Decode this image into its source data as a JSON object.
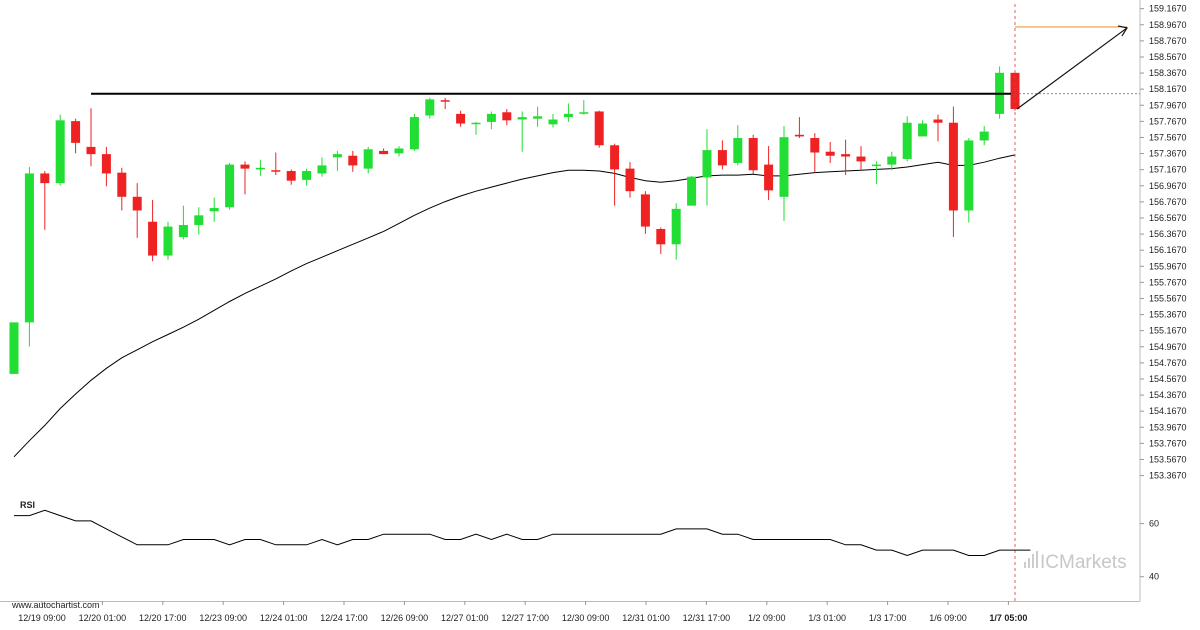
{
  "watermark": "www.autochartist.com",
  "broker_logo": "ICMarkets",
  "colors": {
    "up": "#22dd33",
    "down": "#ee2222",
    "resistance": "#000000",
    "target": "#ee9944",
    "ma": "#000000",
    "rsi": "#000000"
  },
  "chart_data": [
    {
      "type": "candlestick",
      "y_ticks": [
        "159.1670",
        "158.9670",
        "158.7670",
        "158.5670",
        "158.3670",
        "158.1670",
        "157.9670",
        "157.7670",
        "157.5670",
        "157.3670",
        "157.1670",
        "156.9670",
        "156.7670",
        "156.5670",
        "156.3670",
        "156.1670",
        "155.9670",
        "155.7670",
        "155.5670",
        "155.3670",
        "155.1670",
        "154.9670",
        "154.7670",
        "154.5670",
        "154.3670",
        "154.1670",
        "153.9670",
        "153.7670",
        "153.5670",
        "153.3670"
      ],
      "ylim": [
        153.25,
        159.2
      ],
      "x_tick_labels": [
        "12/19 09:00",
        "12/20 01:00",
        "12/20 17:00",
        "12/23 09:00",
        "12/24 01:00",
        "12/24 17:00",
        "12/26 09:00",
        "12/27 01:00",
        "12/27 17:00",
        "12/30 09:00",
        "12/31 01:00",
        "12/31 17:00",
        "1/2 09:00",
        "1/3 01:00",
        "1/3 17:00",
        "1/6 09:00",
        "1/7 05:00"
      ],
      "current_time_label": "1/7 05:00",
      "candles": [
        {
          "o": 154.63,
          "h": 155.27,
          "l": 154.63,
          "c": 155.27
        },
        {
          "o": 155.27,
          "h": 157.2,
          "l": 154.97,
          "c": 157.12
        },
        {
          "o": 157.12,
          "h": 157.15,
          "l": 156.42,
          "c": 157.0
        },
        {
          "o": 157.0,
          "h": 157.85,
          "l": 156.97,
          "c": 157.78
        },
        {
          "o": 157.77,
          "h": 157.8,
          "l": 157.37,
          "c": 157.5
        },
        {
          "o": 157.45,
          "h": 157.93,
          "l": 157.21,
          "c": 157.36
        },
        {
          "o": 157.36,
          "h": 157.45,
          "l": 156.96,
          "c": 157.12
        },
        {
          "o": 157.13,
          "h": 157.19,
          "l": 156.66,
          "c": 156.83
        },
        {
          "o": 156.83,
          "h": 157.0,
          "l": 156.32,
          "c": 156.66
        },
        {
          "o": 156.52,
          "h": 156.79,
          "l": 156.03,
          "c": 156.1
        },
        {
          "o": 156.1,
          "h": 156.52,
          "l": 156.05,
          "c": 156.46
        },
        {
          "o": 156.33,
          "h": 156.72,
          "l": 156.3,
          "c": 156.48
        },
        {
          "o": 156.48,
          "h": 156.7,
          "l": 156.36,
          "c": 156.6
        },
        {
          "o": 156.65,
          "h": 156.82,
          "l": 156.52,
          "c": 156.69
        },
        {
          "o": 156.7,
          "h": 157.25,
          "l": 156.67,
          "c": 157.23
        },
        {
          "o": 157.23,
          "h": 157.27,
          "l": 156.86,
          "c": 157.18
        },
        {
          "o": 157.17,
          "h": 157.29,
          "l": 157.09,
          "c": 157.19
        },
        {
          "o": 157.16,
          "h": 157.38,
          "l": 157.1,
          "c": 157.15
        },
        {
          "o": 157.15,
          "h": 157.17,
          "l": 156.98,
          "c": 157.03
        },
        {
          "o": 157.04,
          "h": 157.18,
          "l": 156.97,
          "c": 157.15
        },
        {
          "o": 157.12,
          "h": 157.32,
          "l": 157.08,
          "c": 157.22
        },
        {
          "o": 157.32,
          "h": 157.4,
          "l": 157.15,
          "c": 157.36
        },
        {
          "o": 157.34,
          "h": 157.4,
          "l": 157.14,
          "c": 157.22
        },
        {
          "o": 157.18,
          "h": 157.45,
          "l": 157.12,
          "c": 157.42
        },
        {
          "o": 157.4,
          "h": 157.43,
          "l": 157.37,
          "c": 157.36
        },
        {
          "o": 157.37,
          "h": 157.46,
          "l": 157.33,
          "c": 157.43
        },
        {
          "o": 157.42,
          "h": 157.86,
          "l": 157.4,
          "c": 157.82
        },
        {
          "o": 157.84,
          "h": 158.06,
          "l": 157.8,
          "c": 158.04
        },
        {
          "o": 158.03,
          "h": 158.06,
          "l": 157.92,
          "c": 158.02
        },
        {
          "o": 157.86,
          "h": 157.9,
          "l": 157.7,
          "c": 157.74
        },
        {
          "o": 157.74,
          "h": 157.76,
          "l": 157.6,
          "c": 157.75
        },
        {
          "o": 157.76,
          "h": 157.89,
          "l": 157.67,
          "c": 157.86
        },
        {
          "o": 157.88,
          "h": 157.92,
          "l": 157.72,
          "c": 157.78
        },
        {
          "o": 157.79,
          "h": 157.89,
          "l": 157.39,
          "c": 157.82
        },
        {
          "o": 157.8,
          "h": 157.95,
          "l": 157.7,
          "c": 157.83
        },
        {
          "o": 157.73,
          "h": 157.86,
          "l": 157.69,
          "c": 157.79
        },
        {
          "o": 157.82,
          "h": 157.99,
          "l": 157.76,
          "c": 157.86
        },
        {
          "o": 157.88,
          "h": 158.03,
          "l": 157.85,
          "c": 157.88
        },
        {
          "o": 157.89,
          "h": 157.9,
          "l": 157.44,
          "c": 157.47
        },
        {
          "o": 157.47,
          "h": 157.49,
          "l": 156.72,
          "c": 157.17
        },
        {
          "o": 157.18,
          "h": 157.26,
          "l": 156.82,
          "c": 156.9
        },
        {
          "o": 156.86,
          "h": 156.9,
          "l": 156.37,
          "c": 156.46
        },
        {
          "o": 156.43,
          "h": 156.45,
          "l": 156.12,
          "c": 156.24
        },
        {
          "o": 156.24,
          "h": 156.75,
          "l": 156.05,
          "c": 156.68
        },
        {
          "o": 156.72,
          "h": 157.09,
          "l": 156.72,
          "c": 157.08
        },
        {
          "o": 157.07,
          "h": 157.67,
          "l": 156.72,
          "c": 157.41
        },
        {
          "o": 157.41,
          "h": 157.53,
          "l": 157.17,
          "c": 157.22
        },
        {
          "o": 157.25,
          "h": 157.72,
          "l": 157.22,
          "c": 157.56
        },
        {
          "o": 157.56,
          "h": 157.6,
          "l": 157.11,
          "c": 157.16
        },
        {
          "o": 157.23,
          "h": 157.46,
          "l": 156.79,
          "c": 156.91
        },
        {
          "o": 156.83,
          "h": 157.71,
          "l": 156.53,
          "c": 157.57
        },
        {
          "o": 157.6,
          "h": 157.82,
          "l": 157.56,
          "c": 157.58
        },
        {
          "o": 157.56,
          "h": 157.62,
          "l": 157.13,
          "c": 157.38
        },
        {
          "o": 157.39,
          "h": 157.51,
          "l": 157.25,
          "c": 157.34
        },
        {
          "o": 157.36,
          "h": 157.54,
          "l": 157.1,
          "c": 157.33
        },
        {
          "o": 157.33,
          "h": 157.46,
          "l": 157.16,
          "c": 157.27
        },
        {
          "o": 157.23,
          "h": 157.27,
          "l": 156.99,
          "c": 157.23
        },
        {
          "o": 157.23,
          "h": 157.39,
          "l": 157.16,
          "c": 157.33
        },
        {
          "o": 157.3,
          "h": 157.83,
          "l": 157.27,
          "c": 157.75
        },
        {
          "o": 157.58,
          "h": 157.78,
          "l": 157.58,
          "c": 157.74
        },
        {
          "o": 157.79,
          "h": 157.85,
          "l": 157.52,
          "c": 157.75
        },
        {
          "o": 157.75,
          "h": 157.95,
          "l": 156.33,
          "c": 156.66
        },
        {
          "o": 156.66,
          "h": 157.56,
          "l": 156.51,
          "c": 157.53
        },
        {
          "o": 157.53,
          "h": 157.71,
          "l": 157.47,
          "c": 157.64
        },
        {
          "o": 157.86,
          "h": 158.45,
          "l": 157.8,
          "c": 158.37
        },
        {
          "o": 158.37,
          "h": 158.37,
          "l": 157.9,
          "c": 157.92
        }
      ],
      "moving_average": [
        153.6,
        153.8,
        153.99,
        154.2,
        154.38,
        154.55,
        154.7,
        154.83,
        154.93,
        155.03,
        155.12,
        155.21,
        155.31,
        155.42,
        155.53,
        155.63,
        155.72,
        155.81,
        155.91,
        156.0,
        156.08,
        156.16,
        156.24,
        156.32,
        156.4,
        156.5,
        156.6,
        156.69,
        156.77,
        156.84,
        156.9,
        156.95,
        157.0,
        157.05,
        157.09,
        157.13,
        157.16,
        157.16,
        157.15,
        157.12,
        157.07,
        157.03,
        157.01,
        157.03,
        157.06,
        157.09,
        157.1,
        157.1,
        157.11,
        157.09,
        157.09,
        157.11,
        157.13,
        157.14,
        157.15,
        157.16,
        157.17,
        157.18,
        157.2,
        157.23,
        157.26,
        157.22,
        157.22,
        157.26,
        157.31,
        157.35
      ],
      "resistance_level": 158.11,
      "breakout_target": 158.94
    },
    {
      "type": "line",
      "name": "RSI",
      "y_ticks": [
        "60",
        "40"
      ],
      "ylim": [
        35,
        70
      ],
      "values": [
        63,
        63,
        65,
        63,
        61,
        61,
        58,
        55,
        52,
        52,
        52,
        54,
        54,
        54,
        52,
        54,
        54,
        52,
        52,
        52,
        54,
        52,
        54,
        54,
        56,
        56,
        56,
        56,
        54,
        54,
        56,
        54,
        56,
        54,
        54,
        56,
        56,
        56,
        56,
        56,
        56,
        56,
        56,
        58,
        58,
        58,
        56,
        56,
        54,
        54,
        54,
        54,
        54,
        54,
        52,
        52,
        50,
        50,
        48,
        50,
        50,
        50,
        48,
        48,
        50,
        50,
        50
      ]
    }
  ]
}
